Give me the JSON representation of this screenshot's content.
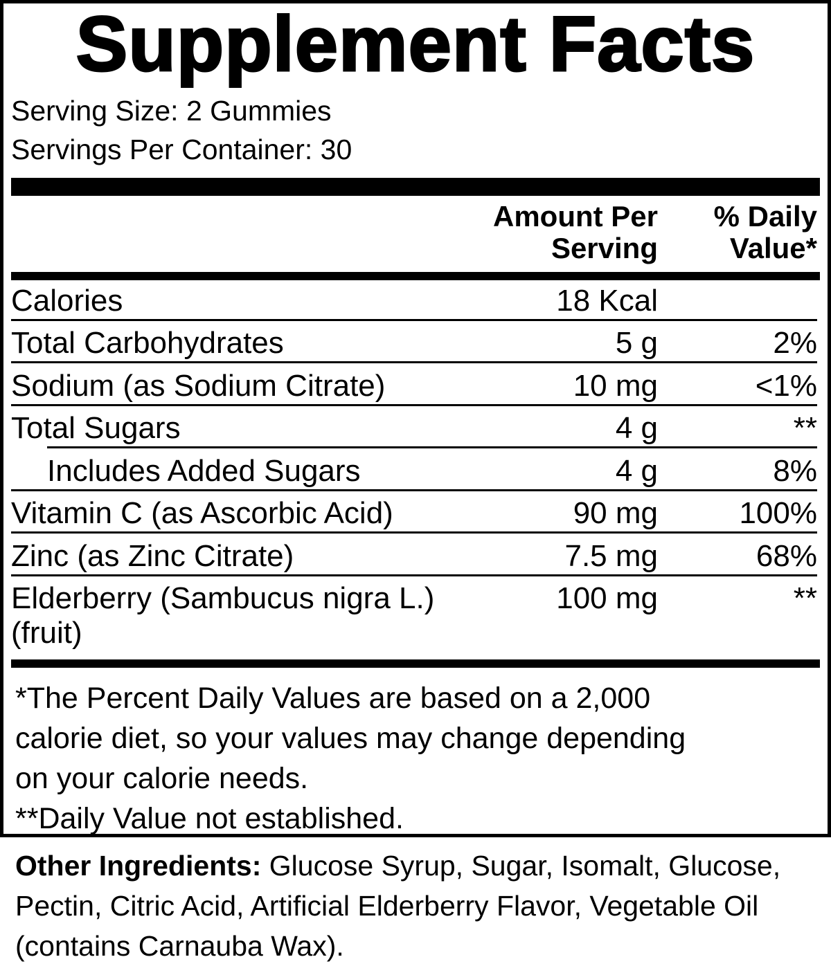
{
  "title": "Supplement Facts",
  "serving_size": "Serving Size: 2 Gummies",
  "servings_per_container": "Servings Per Container: 30",
  "headers": {
    "amount_line1": "Amount Per",
    "amount_line2": "Serving",
    "dv_line1": "% Daily",
    "dv_line2": "Value*"
  },
  "rows": [
    {
      "name": "Calories",
      "amount": "18 Kcal",
      "dv": ""
    },
    {
      "name": "Total Carbohydrates",
      "amount": "5 g",
      "dv": "2%"
    },
    {
      "name": "Sodium (as Sodium Citrate)",
      "amount": "10 mg",
      "dv": "<1%"
    },
    {
      "name": "Total Sugars",
      "amount": "4 g",
      "dv": "**"
    },
    {
      "name": "Includes Added Sugars",
      "amount": "4 g",
      "dv": "8%"
    },
    {
      "name": "Vitamin C (as Ascorbic Acid)",
      "amount": "90 mg",
      "dv": "100%"
    },
    {
      "name": "Zinc (as Zinc Citrate)",
      "amount": "7.5 mg",
      "dv": "68%"
    },
    {
      "name": "Elderberry (Sambucus nigra L.)",
      "name_line2": "(fruit)",
      "amount": "100 mg",
      "dv": "**"
    }
  ],
  "footnotes": {
    "line1": "*The Percent Daily Values are based on a 2,000",
    "line2": "calorie diet, so your values may change depending",
    "line3": "on your calorie needs.",
    "line4": "**Daily Value not established."
  },
  "other_ingredients": {
    "label": "Other Ingredients:",
    "text": " Glucose Syrup, Sugar, Isomalt, Glucose, Pectin, Citric Acid, Artificial Elderberry Flavor, Vegetable Oil (contains Carnauba Wax)."
  }
}
